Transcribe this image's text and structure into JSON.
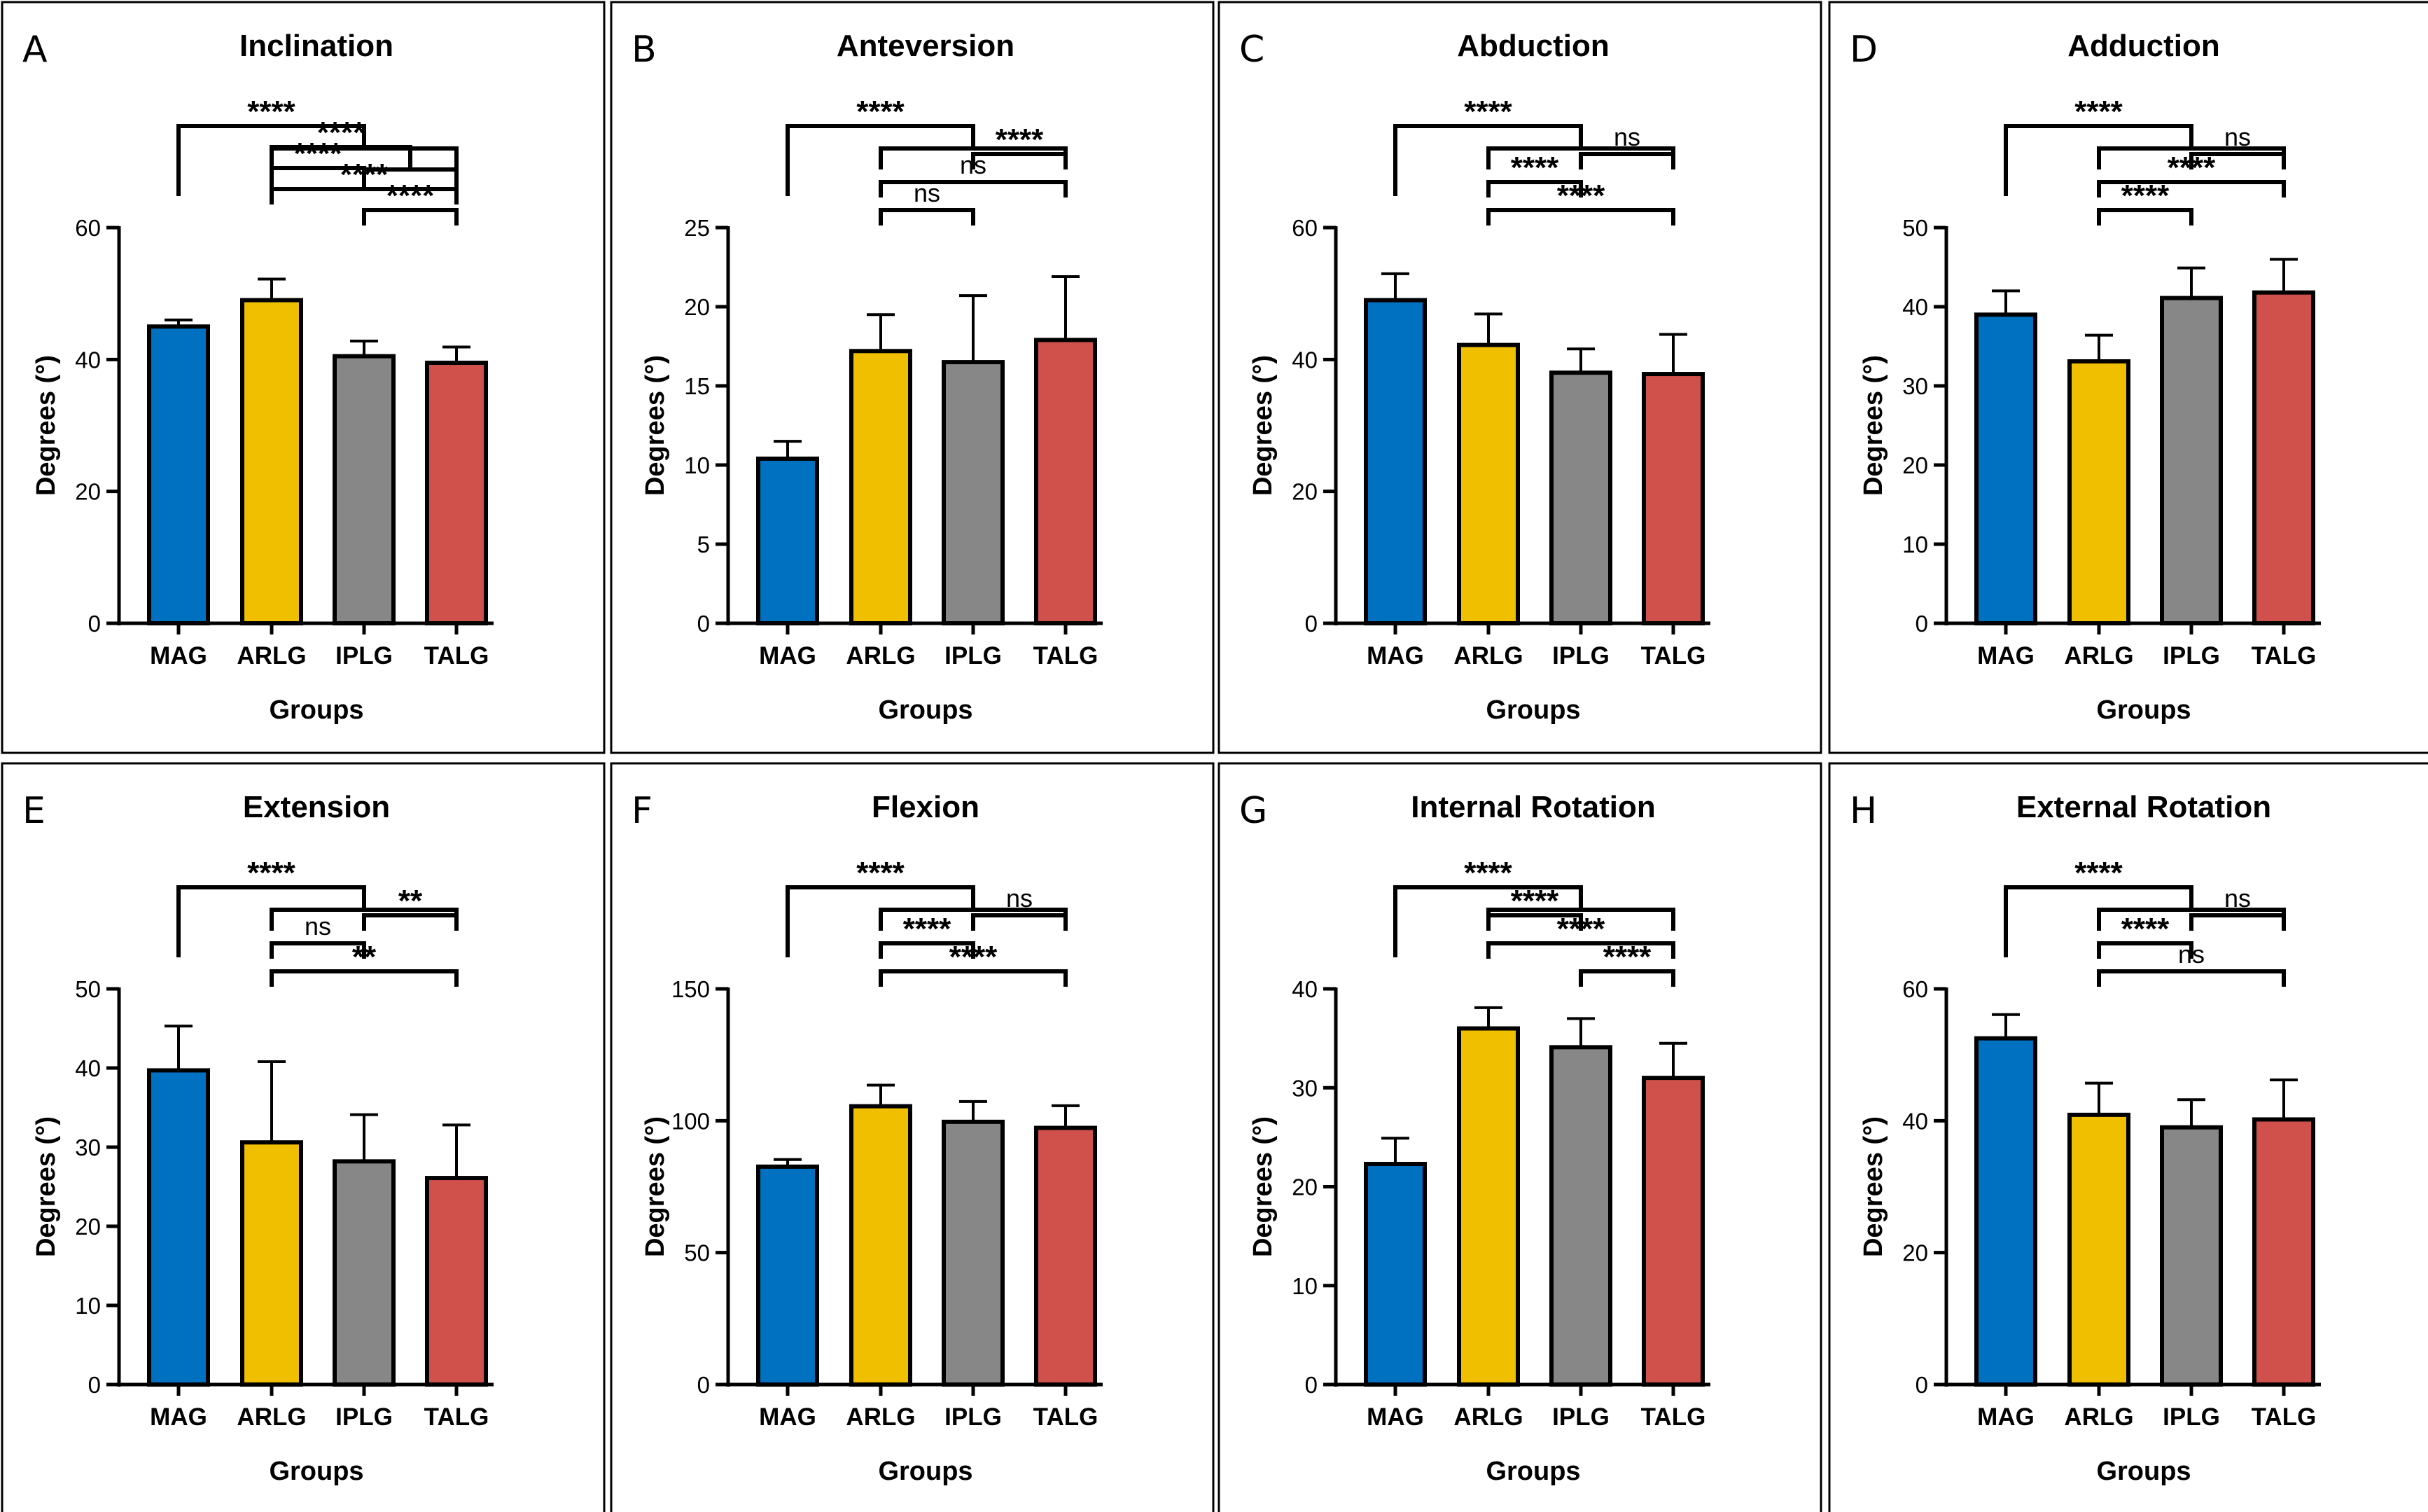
{
  "figure": {
    "group_colors": {
      "MAG": "#0070C0",
      "ARLG": "#F0C000",
      "IPLG": "#878787",
      "TALG": "#D0504C"
    }
  },
  "chart_data": [
    {
      "type": "bar",
      "panel": "A",
      "title": "Inclination",
      "xlabel": "Groups",
      "ylabel": "Degrees (°)",
      "categories": [
        "MAG",
        "ARLG",
        "IPLG",
        "TALG"
      ],
      "values": [
        45,
        49,
        40.5,
        39.5
      ],
      "errors": [
        1,
        3.2,
        2.3,
        2.4
      ],
      "ylim": [
        0,
        60
      ],
      "yticks": [
        0,
        20,
        40,
        60
      ],
      "comparisons": [
        {
          "from": "MAG",
          "to": "ARLG,IPLG,TALG",
          "label": "****"
        },
        {
          "from": "ARLG",
          "to": "IPLG,TALG",
          "label": "****"
        },
        {
          "from": "ARLG",
          "to": "IPLG",
          "label": "****"
        },
        {
          "from": "ARLG",
          "to": "TALG",
          "label": "****"
        },
        {
          "from": "IPLG",
          "to": "TALG",
          "label": "****"
        }
      ]
    },
    {
      "type": "bar",
      "panel": "B",
      "title": "Anteversion",
      "xlabel": "Groups",
      "ylabel": "Degrees (°)",
      "categories": [
        "MAG",
        "ARLG",
        "IPLG",
        "TALG"
      ],
      "values": [
        10.4,
        17.2,
        16.5,
        17.9
      ],
      "errors": [
        1.1,
        2.3,
        4.2,
        4.0
      ],
      "ylim": [
        0,
        25
      ],
      "yticks": [
        0,
        5,
        10,
        15,
        20,
        25
      ],
      "comparisons": [
        {
          "from": "MAG",
          "to": "ARLG,IPLG,TALG",
          "label": "****"
        },
        {
          "from": "IPLG",
          "to": "TALG",
          "label": "****"
        },
        {
          "from": "ARLG",
          "to": "TALG",
          "label": "ns"
        },
        {
          "from": "ARLG",
          "to": "IPLG",
          "label": "ns"
        }
      ]
    },
    {
      "type": "bar",
      "panel": "C",
      "title": "Abduction",
      "xlabel": "Groups",
      "ylabel": "Degrees (°)",
      "categories": [
        "MAG",
        "ARLG",
        "IPLG",
        "TALG"
      ],
      "values": [
        49,
        42.2,
        38,
        37.8
      ],
      "errors": [
        4,
        4.7,
        3.6,
        6
      ],
      "ylim": [
        0,
        60
      ],
      "yticks": [
        0,
        20,
        40,
        60
      ],
      "comparisons": [
        {
          "from": "MAG",
          "to": "ARLG,IPLG,TALG",
          "label": "****"
        },
        {
          "from": "IPLG",
          "to": "TALG",
          "label": "ns"
        },
        {
          "from": "ARLG",
          "to": "IPLG",
          "label": "****"
        },
        {
          "from": "ARLG",
          "to": "TALG",
          "label": "****"
        }
      ]
    },
    {
      "type": "bar",
      "panel": "D",
      "title": "Adduction",
      "xlabel": "Groups",
      "ylabel": "Degrees (°)",
      "categories": [
        "MAG",
        "ARLG",
        "IPLG",
        "TALG"
      ],
      "values": [
        39,
        33.1,
        41.1,
        41.8
      ],
      "errors": [
        3,
        3.3,
        3.8,
        4.2
      ],
      "ylim": [
        0,
        50
      ],
      "yticks": [
        0,
        10,
        20,
        30,
        40,
        50
      ],
      "comparisons": [
        {
          "from": "MAG",
          "to": "ARLG,IPLG,TALG",
          "label": "****"
        },
        {
          "from": "IPLG",
          "to": "TALG",
          "label": "ns"
        },
        {
          "from": "ARLG",
          "to": "TALG",
          "label": "****"
        },
        {
          "from": "ARLG",
          "to": "IPLG",
          "label": "****"
        }
      ]
    },
    {
      "type": "bar",
      "panel": "E",
      "title": "Extension",
      "xlabel": "Groups",
      "ylabel": "Degrees (°)",
      "categories": [
        "MAG",
        "ARLG",
        "IPLG",
        "TALG"
      ],
      "values": [
        39.7,
        30.6,
        28.2,
        26.1
      ],
      "errors": [
        5.6,
        10.2,
        5.9,
        6.7
      ],
      "ylim": [
        0,
        50
      ],
      "yticks": [
        0,
        10,
        20,
        30,
        40,
        50
      ],
      "comparisons": [
        {
          "from": "MAG",
          "to": "ARLG,IPLG,TALG",
          "label": "****"
        },
        {
          "from": "IPLG",
          "to": "TALG",
          "label": "**"
        },
        {
          "from": "ARLG",
          "to": "IPLG",
          "label": "ns"
        },
        {
          "from": "ARLG",
          "to": "TALG",
          "label": "**"
        }
      ]
    },
    {
      "type": "bar",
      "panel": "F",
      "title": "Flexion",
      "xlabel": "Groups",
      "ylabel": "Degrees (°)",
      "categories": [
        "MAG",
        "ARLG",
        "IPLG",
        "TALG"
      ],
      "values": [
        82.6,
        105.5,
        99.6,
        97.3
      ],
      "errors": [
        2.7,
        8.0,
        7.7,
        8.4
      ],
      "ylim": [
        0,
        150
      ],
      "yticks": [
        0,
        50,
        100,
        150
      ],
      "comparisons": [
        {
          "from": "MAG",
          "to": "ARLG,IPLG,TALG",
          "label": "****"
        },
        {
          "from": "IPLG",
          "to": "TALG",
          "label": "ns"
        },
        {
          "from": "ARLG",
          "to": "IPLG",
          "label": "****"
        },
        {
          "from": "ARLG",
          "to": "TALG",
          "label": "****"
        }
      ]
    },
    {
      "type": "bar",
      "panel": "G",
      "title": "Internal Rotation",
      "xlabel": "Groups",
      "ylabel": "Degrees (°)",
      "categories": [
        "MAG",
        "ARLG",
        "IPLG",
        "TALG"
      ],
      "values": [
        22.3,
        36,
        34.1,
        31
      ],
      "errors": [
        2.6,
        2.1,
        2.9,
        3.5
      ],
      "ylim": [
        0,
        40
      ],
      "yticks": [
        0,
        10,
        20,
        30,
        40
      ],
      "comparisons": [
        {
          "from": "MAG",
          "to": "ARLG,IPLG,TALG",
          "label": "****"
        },
        {
          "from": "ARLG",
          "to": "IPLG",
          "label": "****"
        },
        {
          "from": "ARLG",
          "to": "TALG",
          "label": "****"
        },
        {
          "from": "IPLG",
          "to": "TALG",
          "label": "****"
        }
      ]
    },
    {
      "type": "bar",
      "panel": "H",
      "title": "External Rotation",
      "xlabel": "Groups",
      "ylabel": "Degrees (°)",
      "categories": [
        "MAG",
        "ARLG",
        "IPLG",
        "TALG"
      ],
      "values": [
        52.5,
        40.9,
        39,
        40.2
      ],
      "errors": [
        3.6,
        4.8,
        4.2,
        6.0
      ],
      "ylim": [
        0,
        60
      ],
      "yticks": [
        0,
        20,
        40,
        60
      ],
      "comparisons": [
        {
          "from": "MAG",
          "to": "ARLG,IPLG,TALG",
          "label": "****"
        },
        {
          "from": "IPLG",
          "to": "TALG",
          "label": "ns"
        },
        {
          "from": "ARLG",
          "to": "IPLG",
          "label": "****"
        },
        {
          "from": "ARLG",
          "to": "TALG",
          "label": "ns"
        }
      ]
    }
  ]
}
